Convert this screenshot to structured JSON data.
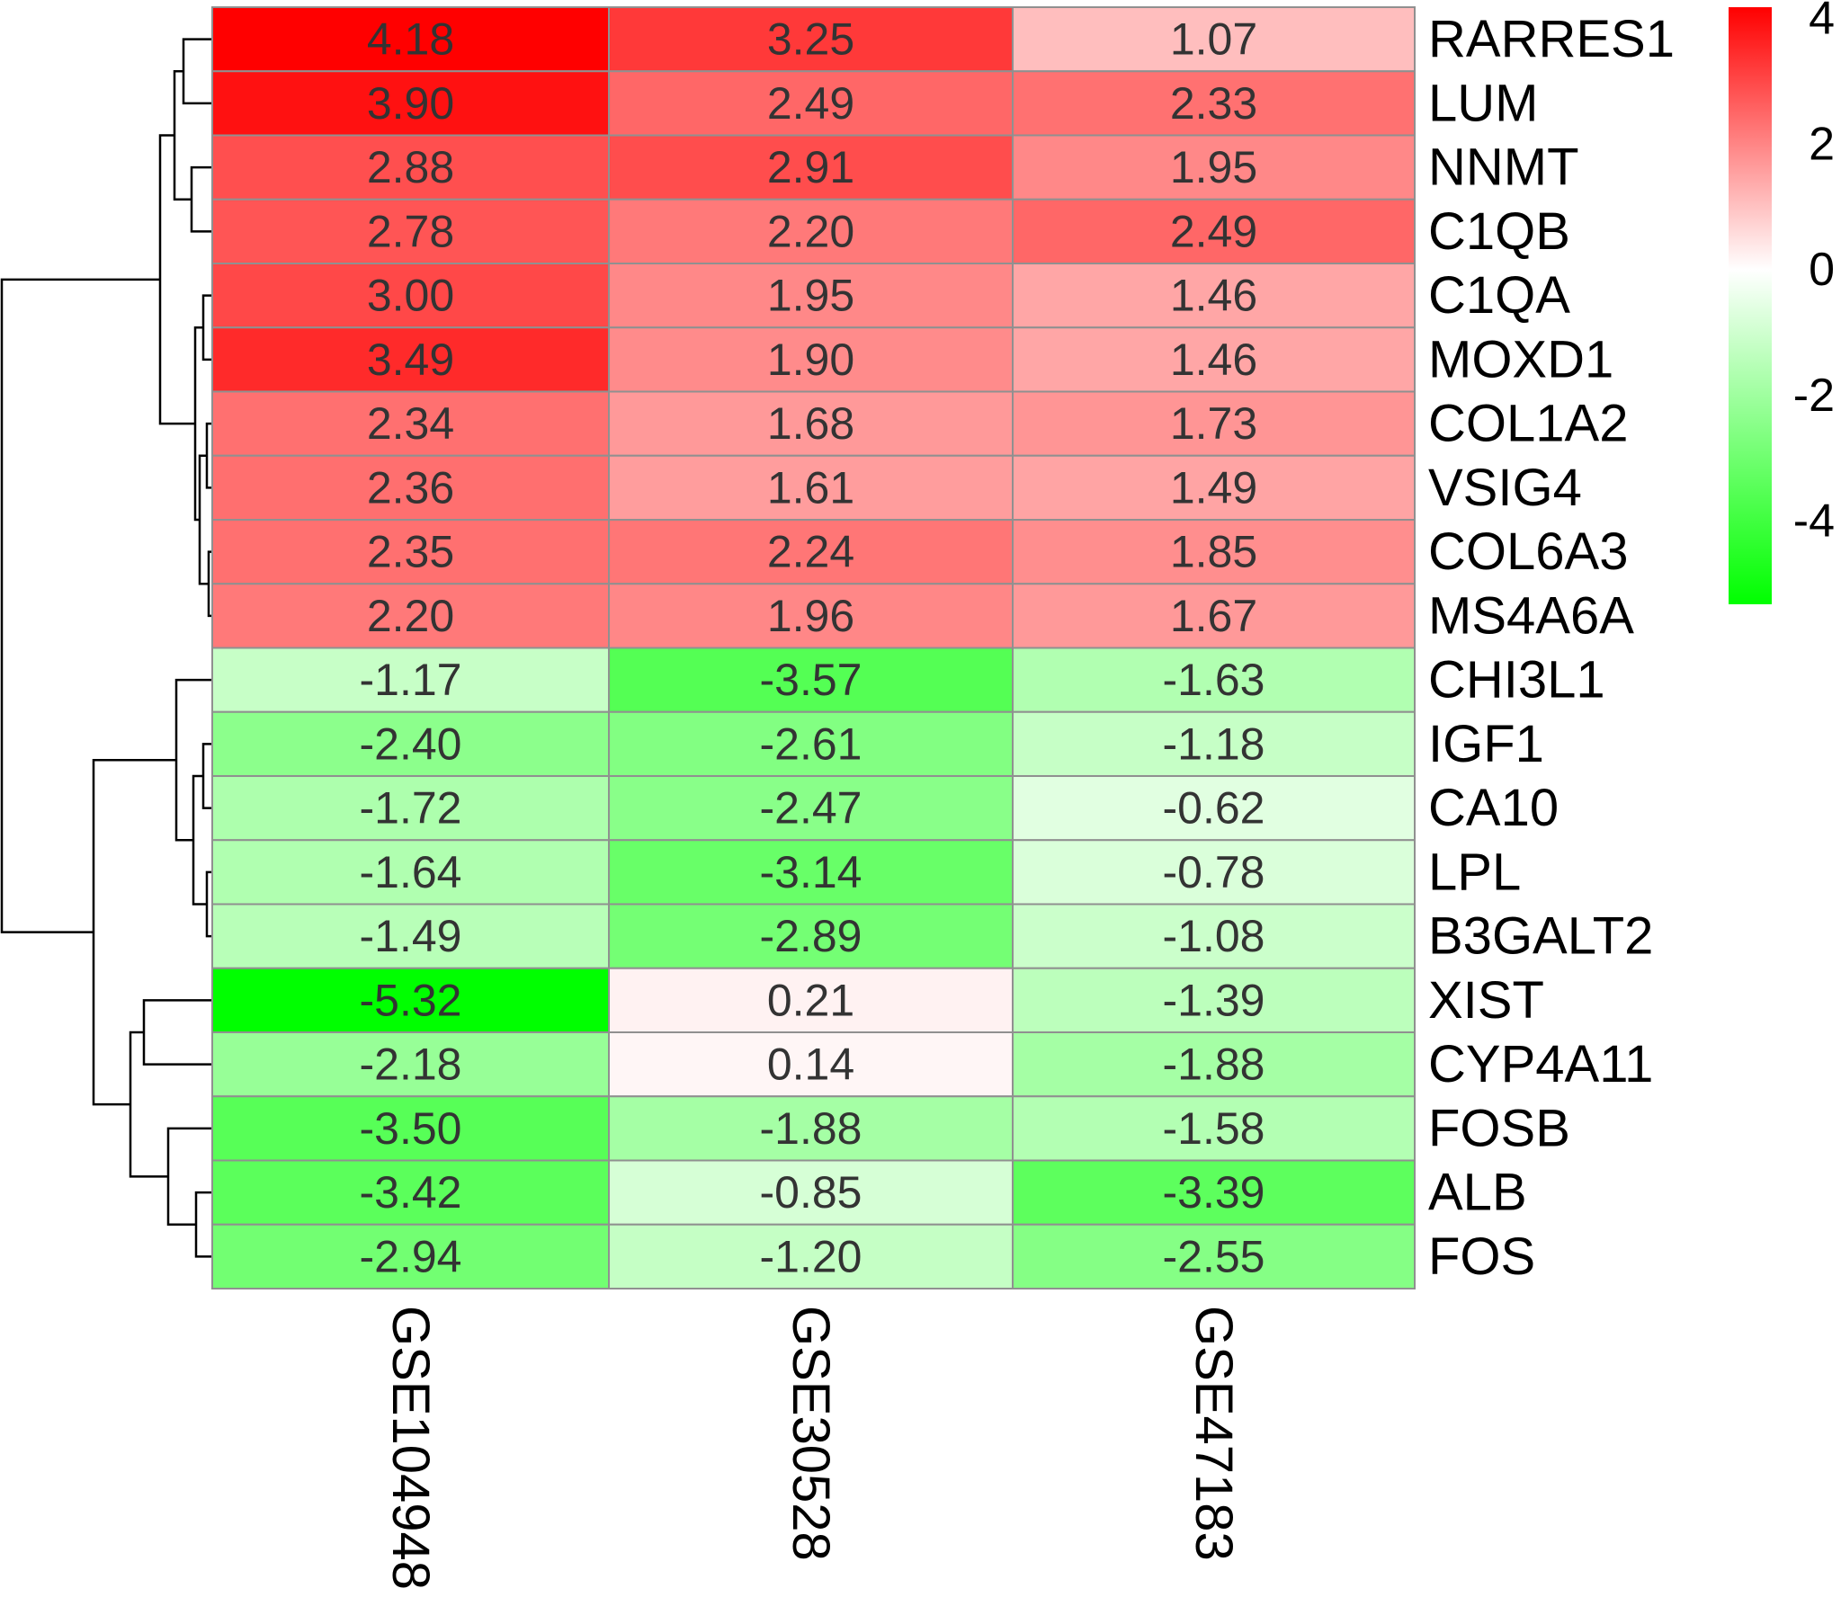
{
  "chart_data": {
    "type": "heatmap",
    "title": "",
    "columns": [
      "GSE104948",
      "GSE30528",
      "GSE47183"
    ],
    "rows": [
      "RARRES1",
      "LUM",
      "NNMT",
      "C1QB",
      "C1QA",
      "MOXD1",
      "COL1A2",
      "VSIG4",
      "COL6A3",
      "MS4A6A",
      "CHI3L1",
      "IGF1",
      "CA10",
      "LPL",
      "B3GALT2",
      "XIST",
      "CYP4A11",
      "FOSB",
      "ALB",
      "FOS"
    ],
    "values": [
      [
        4.18,
        3.25,
        1.07
      ],
      [
        3.9,
        2.49,
        2.33
      ],
      [
        2.88,
        2.91,
        1.95
      ],
      [
        2.78,
        2.2,
        2.49
      ],
      [
        3.0,
        1.95,
        1.46
      ],
      [
        3.49,
        1.9,
        1.46
      ],
      [
        2.34,
        1.68,
        1.73
      ],
      [
        2.36,
        1.61,
        1.49
      ],
      [
        2.35,
        2.24,
        1.85
      ],
      [
        2.2,
        1.96,
        1.67
      ],
      [
        -1.17,
        -3.57,
        -1.63
      ],
      [
        -2.4,
        -2.61,
        -1.18
      ],
      [
        -1.72,
        -2.47,
        -0.62
      ],
      [
        -1.64,
        -3.14,
        -0.78
      ],
      [
        -1.49,
        -2.89,
        -1.08
      ],
      [
        -5.32,
        0.21,
        -1.39
      ],
      [
        -2.18,
        0.14,
        -1.88
      ],
      [
        -3.5,
        -1.88,
        -1.58
      ],
      [
        -3.42,
        -0.85,
        -3.39
      ],
      [
        -2.94,
        -1.2,
        -2.55
      ]
    ],
    "value_labels": [
      [
        "4.18",
        "3.25",
        "1.07"
      ],
      [
        "3.90",
        "2.49",
        "2.33"
      ],
      [
        "2.88",
        "2.91",
        "1.95"
      ],
      [
        "2.78",
        "2.20",
        "2.49"
      ],
      [
        "3.00",
        "1.95",
        "1.46"
      ],
      [
        "3.49",
        "1.90",
        "1.46"
      ],
      [
        "2.34",
        "1.68",
        "1.73"
      ],
      [
        "2.36",
        "1.61",
        "1.49"
      ],
      [
        "2.35",
        "2.24",
        "1.85"
      ],
      [
        "2.20",
        "1.96",
        "1.67"
      ],
      [
        "-1.17",
        "-3.57",
        "-1.63"
      ],
      [
        "-2.40",
        "-2.61",
        "-1.18"
      ],
      [
        "-1.72",
        "-2.47",
        "-0.62"
      ],
      [
        "-1.64",
        "-3.14",
        "-0.78"
      ],
      [
        "-1.49",
        "-2.89",
        "-1.08"
      ],
      [
        "-5.32",
        "0.21",
        "-1.39"
      ],
      [
        "-2.18",
        "0.14",
        "-1.88"
      ],
      [
        "-3.50",
        "-1.88",
        "-1.58"
      ],
      [
        "-3.42",
        "-0.85",
        "-3.39"
      ],
      [
        "-2.94",
        "-1.20",
        "-2.55"
      ]
    ],
    "color_scale": {
      "min": -5.32,
      "mid": 0,
      "max": 4.18,
      "low_color": "#00ff00",
      "mid_color": "#ffffff",
      "high_color": "#ff0000"
    },
    "legend": {
      "position": "top-right",
      "ticks": [
        4,
        2,
        0,
        -2,
        -4
      ],
      "tick_labels": [
        "4",
        "2",
        "0",
        "-2",
        "-4"
      ]
    },
    "row_dendrogram": true,
    "grid": true
  }
}
